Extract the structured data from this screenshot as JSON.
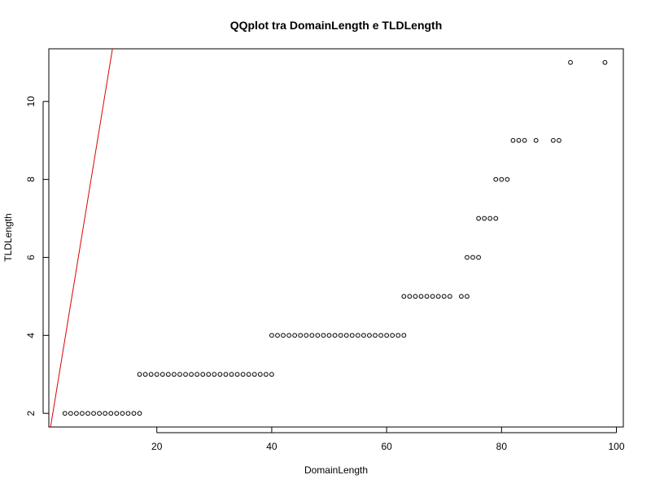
{
  "chart_data": {
    "type": "scatter",
    "title": "QQplot tra DomainLength e TLDLength",
    "xlabel": "DomainLength",
    "ylabel": "TLDLength",
    "xlim": [
      1.2,
      101.2
    ],
    "ylim": [
      1.65,
      11.35
    ],
    "xticks": [
      20,
      40,
      60,
      80,
      100
    ],
    "xtick_labels": [
      "20",
      "40",
      "60",
      "80",
      "100"
    ],
    "yticks": [
      2,
      4,
      6,
      8,
      10
    ],
    "ytick_labels": [
      "2",
      "4",
      "6",
      "8",
      "10"
    ],
    "grid": false,
    "reference_line": {
      "color": "#dd0000",
      "slope": 0.9,
      "intercept": 0.3
    },
    "x": [
      4,
      5,
      6,
      7,
      8,
      9,
      10,
      11,
      12,
      13,
      14,
      15,
      16,
      17,
      17,
      18,
      19,
      20,
      21,
      22,
      23,
      24,
      25,
      26,
      27,
      28,
      29,
      30,
      31,
      32,
      33,
      34,
      35,
      36,
      37,
      38,
      39,
      40,
      40,
      41,
      42,
      43,
      44,
      45,
      46,
      47,
      48,
      49,
      50,
      51,
      52,
      53,
      54,
      55,
      56,
      57,
      58,
      59,
      60,
      61,
      62,
      63,
      63,
      64,
      65,
      66,
      67,
      68,
      69,
      70,
      71,
      73,
      74,
      74,
      75,
      76,
      76,
      77,
      78,
      79,
      79,
      80,
      81,
      82,
      83,
      84,
      86,
      89,
      90,
      92,
      98
    ],
    "y": [
      2,
      2,
      2,
      2,
      2,
      2,
      2,
      2,
      2,
      2,
      2,
      2,
      2,
      2,
      3,
      3,
      3,
      3,
      3,
      3,
      3,
      3,
      3,
      3,
      3,
      3,
      3,
      3,
      3,
      3,
      3,
      3,
      3,
      3,
      3,
      3,
      3,
      3,
      4,
      4,
      4,
      4,
      4,
      4,
      4,
      4,
      4,
      4,
      4,
      4,
      4,
      4,
      4,
      4,
      4,
      4,
      4,
      4,
      4,
      4,
      4,
      4,
      5,
      5,
      5,
      5,
      5,
      5,
      5,
      5,
      5,
      5,
      5,
      6,
      6,
      6,
      7,
      7,
      7,
      7,
      8,
      8,
      8,
      9,
      9,
      9,
      9,
      9,
      9,
      11,
      11
    ]
  }
}
